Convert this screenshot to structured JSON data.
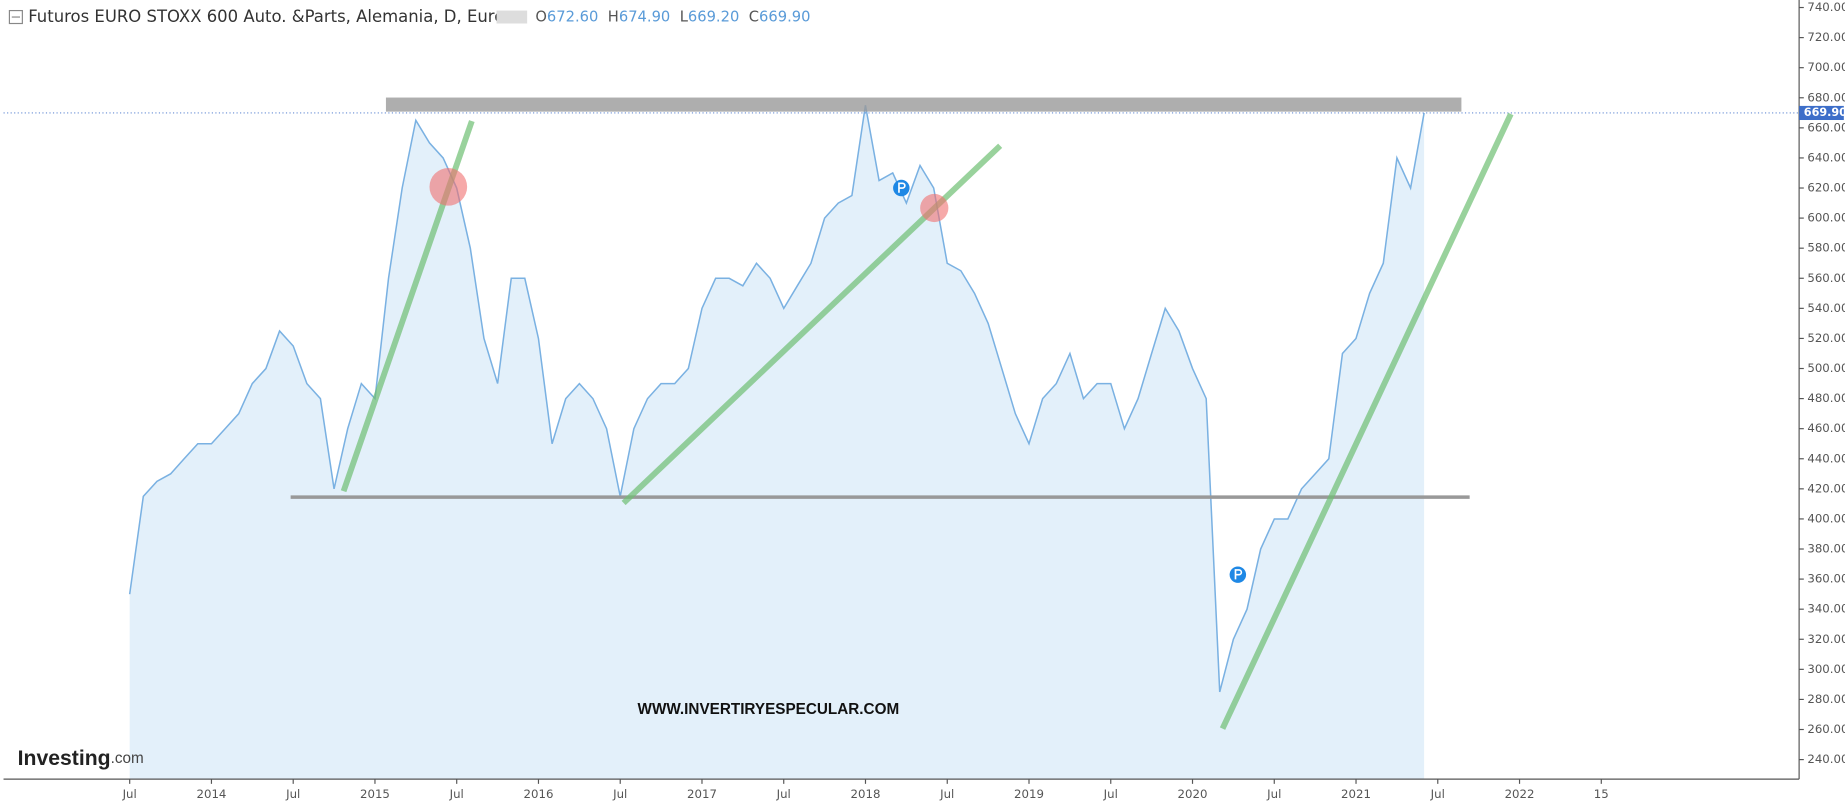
{
  "chart_data": {
    "type": "area",
    "title": "Futuros EURO STOXX 600 Auto. &Parts, Alemania, D, Eurex",
    "ohlc": [
      {
        "label": "O",
        "value": "672.60"
      },
      {
        "label": "H",
        "value": "674.90"
      },
      {
        "label": "L",
        "value": "669.20"
      },
      {
        "label": "C",
        "value": "669.90"
      }
    ],
    "last_price": {
      "value": 669.9,
      "label": "669.90"
    },
    "watermark": "WWW.INVERTIRYESPECULAR.COM",
    "logo": "Investing",
    "logo_suffix": ".com",
    "x": [
      "2013-07",
      "2013-08",
      "2013-09",
      "2013-10",
      "2013-11",
      "2013-12",
      "2014-01",
      "2014-02",
      "2014-03",
      "2014-04",
      "2014-05",
      "2014-06",
      "2014-07",
      "2014-08",
      "2014-09",
      "2014-10",
      "2014-11",
      "2014-12",
      "2015-01",
      "2015-02",
      "2015-03",
      "2015-04",
      "2015-05",
      "2015-06",
      "2015-07",
      "2015-08",
      "2015-09",
      "2015-10",
      "2015-11",
      "2015-12",
      "2016-01",
      "2016-02",
      "2016-03",
      "2016-04",
      "2016-05",
      "2016-06",
      "2016-07",
      "2016-08",
      "2016-09",
      "2016-10",
      "2016-11",
      "2016-12",
      "2017-01",
      "2017-02",
      "2017-03",
      "2017-04",
      "2017-05",
      "2017-06",
      "2017-07",
      "2017-08",
      "2017-09",
      "2017-10",
      "2017-11",
      "2017-12",
      "2018-01",
      "2018-02",
      "2018-03",
      "2018-04",
      "2018-05",
      "2018-06",
      "2018-07",
      "2018-08",
      "2018-09",
      "2018-10",
      "2018-11",
      "2018-12",
      "2019-01",
      "2019-02",
      "2019-03",
      "2019-04",
      "2019-05",
      "2019-06",
      "2019-07",
      "2019-08",
      "2019-09",
      "2019-10",
      "2019-11",
      "2019-12",
      "2020-01",
      "2020-02",
      "2020-03",
      "2020-04",
      "2020-05",
      "2020-06",
      "2020-07",
      "2020-08",
      "2020-09",
      "2020-10",
      "2020-11",
      "2020-12",
      "2021-01",
      "2021-02",
      "2021-03",
      "2021-04",
      "2021-05",
      "2021-06"
    ],
    "series": [
      {
        "name": "EURO STOXX 600 Auto. &Parts",
        "color": "#7ab1e2",
        "fill": "#e3f0fa",
        "values": [
          350,
          415,
          425,
          430,
          440,
          450,
          450,
          460,
          470,
          490,
          500,
          525,
          515,
          490,
          480,
          420,
          460,
          490,
          480,
          560,
          620,
          665,
          650,
          640,
          620,
          580,
          520,
          490,
          560,
          560,
          520,
          450,
          480,
          490,
          480,
          460,
          415,
          460,
          480,
          490,
          490,
          500,
          540,
          560,
          560,
          555,
          570,
          560,
          540,
          555,
          570,
          600,
          610,
          615,
          675,
          625,
          630,
          610,
          635,
          620,
          570,
          565,
          550,
          530,
          500,
          470,
          450,
          480,
          490,
          510,
          480,
          490,
          490,
          460,
          480,
          510,
          540,
          525,
          500,
          480,
          285,
          320,
          340,
          380,
          400,
          400,
          420,
          430,
          440,
          510,
          520,
          550,
          570,
          640,
          620,
          669.9
        ]
      }
    ],
    "xlim": [
      "2012-10",
      "2023-09"
    ],
    "xticks": [
      {
        "value": "2013-07",
        "label": "Jul"
      },
      {
        "value": "2014-01",
        "label": "2014"
      },
      {
        "value": "2014-07",
        "label": "Jul"
      },
      {
        "value": "2015-01",
        "label": "2015"
      },
      {
        "value": "2015-07",
        "label": "Jul"
      },
      {
        "value": "2016-01",
        "label": "2016"
      },
      {
        "value": "2016-07",
        "label": "Jul"
      },
      {
        "value": "2017-01",
        "label": "2017"
      },
      {
        "value": "2017-07",
        "label": "Jul"
      },
      {
        "value": "2018-01",
        "label": "2018"
      },
      {
        "value": "2018-07",
        "label": "Jul"
      },
      {
        "value": "2019-01",
        "label": "2019"
      },
      {
        "value": "2019-07",
        "label": "Jul"
      },
      {
        "value": "2020-01",
        "label": "2020"
      },
      {
        "value": "2020-07",
        "label": "Jul"
      },
      {
        "value": "2021-01",
        "label": "2021"
      },
      {
        "value": "2021-07",
        "label": "Jul"
      },
      {
        "value": "2022-01",
        "label": "2022"
      },
      {
        "value": "2022-07",
        "label": "15"
      }
    ],
    "ylim": [
      227,
      745
    ],
    "yticks": [
      {
        "value": 240,
        "label": "240.00"
      },
      {
        "value": 260,
        "label": "260.00"
      },
      {
        "value": 280,
        "label": "280.00"
      },
      {
        "value": 300,
        "label": "300.00"
      },
      {
        "value": 320,
        "label": "320.00"
      },
      {
        "value": 340,
        "label": "340.00"
      },
      {
        "value": 360,
        "label": "360.00"
      },
      {
        "value": 380,
        "label": "380.00"
      },
      {
        "value": 400,
        "label": "400.00"
      },
      {
        "value": 420,
        "label": "420.00"
      },
      {
        "value": 440,
        "label": "440.00"
      },
      {
        "value": 460,
        "label": "460.00"
      },
      {
        "value": 480,
        "label": "480.00"
      },
      {
        "value": 500,
        "label": "500.00"
      },
      {
        "value": 520,
        "label": "520.00"
      },
      {
        "value": 540,
        "label": "540.00"
      },
      {
        "value": 560,
        "label": "560.00"
      },
      {
        "value": 580,
        "label": "580.00"
      },
      {
        "value": 600,
        "label": "600.00"
      },
      {
        "value": 620,
        "label": "620.00"
      },
      {
        "value": 640,
        "label": "640.00"
      },
      {
        "value": 660,
        "label": "660.00"
      },
      {
        "value": 680,
        "label": "680.00"
      },
      {
        "value": 700,
        "label": "700.00"
      },
      {
        "value": 720,
        "label": "720.00"
      },
      {
        "value": 740,
        "label": "740.00"
      }
    ],
    "grid": false
  }
}
